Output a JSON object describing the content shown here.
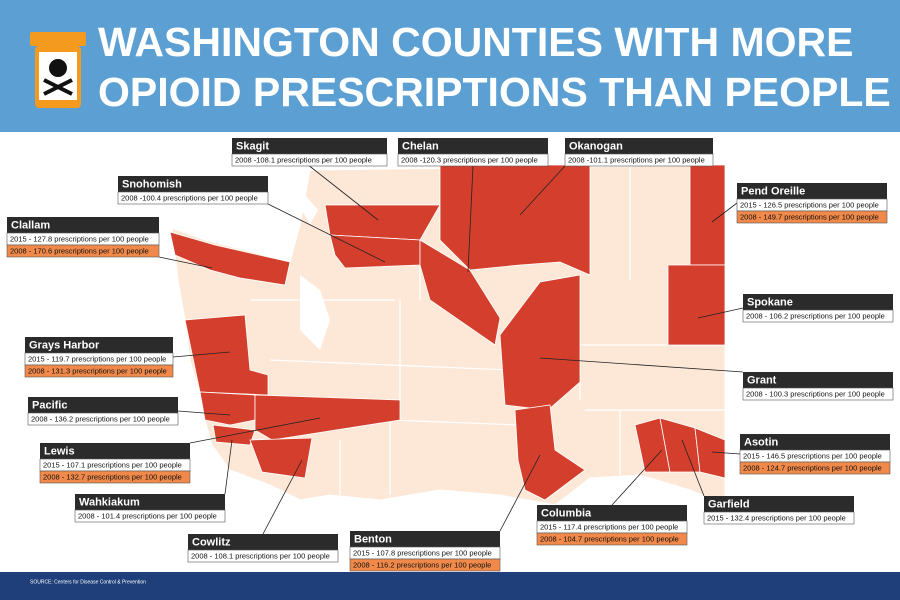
{
  "header": {
    "title_lines": [
      "WASHINGTON COUNTIES WITH MORE",
      "OPIOID PRESCRIPTIONS THAN PEOPLE"
    ]
  },
  "callouts": [
    {
      "name": "Skagit",
      "lines": [
        "2008 -108.1 prescriptions per 100 people"
      ]
    },
    {
      "name": "Chelan",
      "lines": [
        "2008 -120.3 prescriptions per 100 people"
      ]
    },
    {
      "name": "Okanogan",
      "lines": [
        "2008 -101.1 prescriptions per 100 people"
      ]
    },
    {
      "name": "Snohomish",
      "lines": [
        "2008 -100.4 prescriptions per 100 people"
      ]
    },
    {
      "name": "Pend Oreille",
      "lines": [
        "2015 - 126.5 prescriptions per 100 people",
        "2008 - 149.7 prescriptions per 100 people"
      ]
    },
    {
      "name": "Clallam",
      "lines": [
        "2015 - 127.8 prescriptions per 100 people",
        "2008 - 170.6 prescriptions per 100 people"
      ]
    },
    {
      "name": "Spokane",
      "lines": [
        "2008 - 106.2 prescriptions per 100 people"
      ]
    },
    {
      "name": "Grays Harbor",
      "lines": [
        "2015 - 119.7 prescriptions per 100 people",
        "2008 - 131.3 prescriptions per 100 people"
      ]
    },
    {
      "name": "Grant",
      "lines": [
        "2008 - 100.3 prescriptions per 100 people"
      ]
    },
    {
      "name": "Pacific",
      "lines": [
        "2008 - 136.2 prescriptions per 100 people"
      ]
    },
    {
      "name": "Lewis",
      "lines": [
        "2015 - 107.1 prescriptions per 100 people",
        "2008 - 132.7 prescriptions per 100 people"
      ]
    },
    {
      "name": "Asotin",
      "lines": [
        "2015 - 146.5 prescriptions per 100 people",
        "2008 - 124.7 prescriptions per 100 people"
      ]
    },
    {
      "name": "Wahkiakum",
      "lines": [
        "2008 - 101.4 prescriptions per 100 people"
      ]
    },
    {
      "name": "Columbia",
      "lines": [
        "2015 - 117.4 prescriptions per 100 people",
        "2008 - 104.7 prescriptions per 100 people"
      ]
    },
    {
      "name": "Garfield",
      "lines": [
        "2015 - 132.4 prescriptions per 100 people"
      ]
    },
    {
      "name": "Cowlitz",
      "lines": [
        "2008 - 108.1 prescriptions per 100 people"
      ]
    },
    {
      "name": "Benton",
      "lines": [
        "2015 - 107.8 prescriptions per 100 people",
        "2008 - 116.2 prescriptions per 100 people"
      ]
    }
  ],
  "footer": {
    "source": "SOURCE: Centers for Disease Control & Prevention"
  }
}
